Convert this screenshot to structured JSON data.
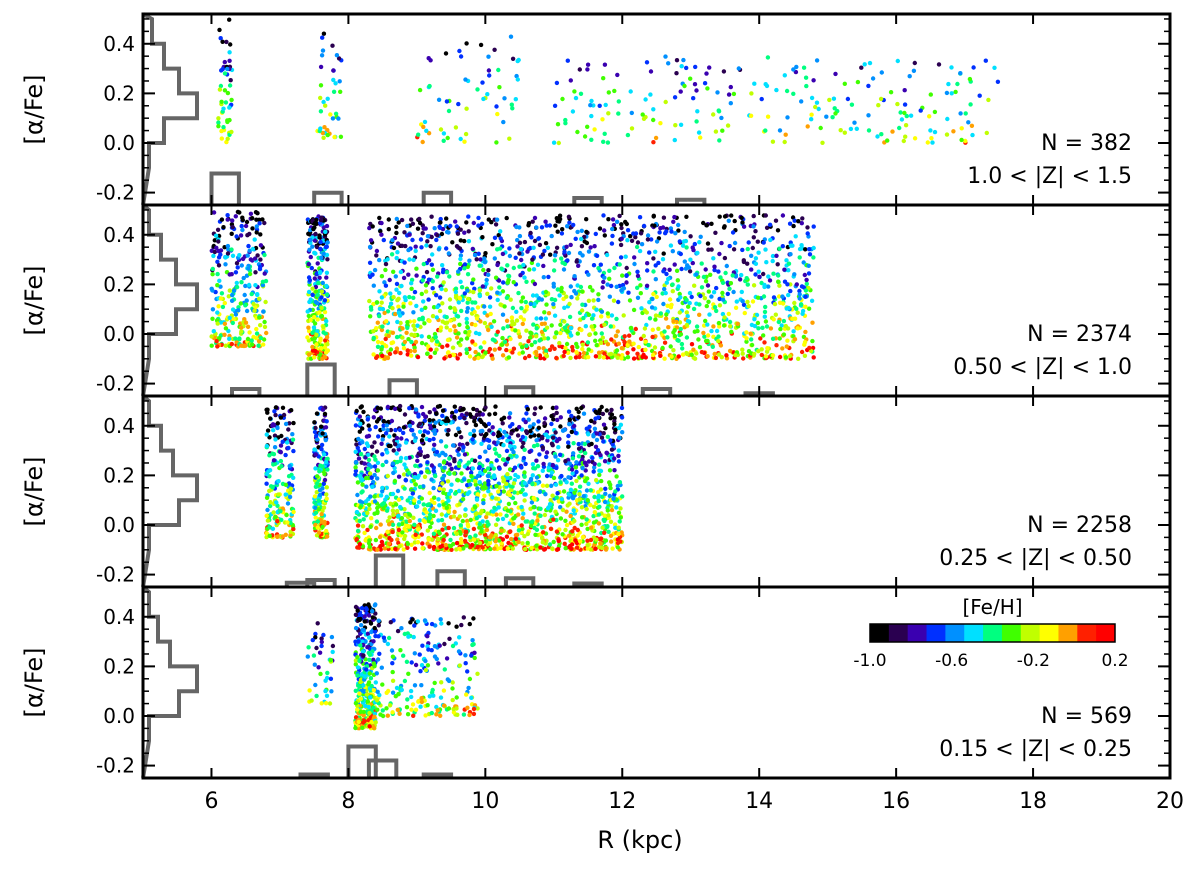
{
  "figure": {
    "xlabel": "R (kpc)",
    "x_ticks": [
      "6",
      "8",
      "10",
      "12",
      "14",
      "16",
      "18",
      "20"
    ],
    "x_tick_values": [
      6,
      8,
      10,
      12,
      14,
      16,
      18,
      20
    ],
    "ylabel": "[α/Fe]",
    "y_ticks": [
      "-0.2",
      "0.0",
      "0.2",
      "0.4"
    ],
    "y_tick_values": [
      -0.2,
      0.0,
      0.2,
      0.4
    ],
    "colorbar": {
      "title": "[Fe/H]",
      "tick_labels": [
        "-1.0",
        "-0.6",
        "-0.2",
        "0.2"
      ],
      "tick_values": [
        -1.0,
        -0.6,
        -0.2,
        0.2
      ],
      "range": [
        -1.0,
        0.2
      ],
      "colors": [
        "#000000",
        "#2a0050",
        "#3a00b0",
        "#0030ff",
        "#0090ff",
        "#00e0ff",
        "#00ff80",
        "#40ff00",
        "#c0ff00",
        "#ffff00",
        "#ffa000",
        "#ff2000",
        "#ff0000"
      ]
    },
    "histogram_color": "#666666"
  },
  "chart_data": [
    {
      "type": "scatter",
      "panel": 1,
      "n_label": "N = 382",
      "z_label": "1.0 < |Z| < 1.5",
      "xlim": [
        5,
        20
      ],
      "ylim": [
        -0.25,
        0.52
      ],
      "clusters": [
        {
          "x": [
            6.1,
            6.3
          ],
          "y": [
            -0.02,
            0.5
          ],
          "n": 50
        },
        {
          "x": [
            7.5,
            7.9
          ],
          "y": [
            0.02,
            0.45
          ],
          "n": 40
        },
        {
          "x": [
            9.0,
            10.5
          ],
          "y": [
            0.0,
            0.45
          ],
          "n": 60
        },
        {
          "x": [
            11.0,
            17.5
          ],
          "y": [
            0.0,
            0.35
          ],
          "n": 230
        }
      ],
      "histogram_R": {
        "bin_centers": [
          6.2,
          7.7,
          9.3,
          11.5,
          13.0
        ],
        "relative_heights": [
          0.9,
          0.35,
          0.35,
          0.2,
          0.15
        ]
      },
      "histogram_alpha": {
        "bin_centers": [
          -0.05,
          0.05,
          0.15,
          0.25,
          0.35,
          0.45
        ],
        "relative_heights": [
          0.1,
          0.35,
          0.9,
          0.6,
          0.35,
          0.15
        ]
      }
    },
    {
      "type": "scatter",
      "panel": 2,
      "n_label": "N = 2374",
      "z_label": "0.50 < |Z| < 1.0",
      "xlim": [
        5,
        20
      ],
      "ylim": [
        -0.25,
        0.52
      ],
      "clusters": [
        {
          "x": [
            6.0,
            6.8
          ],
          "y": [
            -0.05,
            0.5
          ],
          "n": 300
        },
        {
          "x": [
            7.4,
            7.7
          ],
          "y": [
            -0.1,
            0.48
          ],
          "n": 280
        },
        {
          "x": [
            8.3,
            14.8
          ],
          "y": [
            -0.1,
            0.48
          ],
          "n": 1794
        }
      ],
      "histogram_R": {
        "bin_centers": [
          6.5,
          7.6,
          8.8,
          10.5,
          12.5,
          14.0
        ],
        "relative_heights": [
          0.2,
          0.9,
          0.45,
          0.25,
          0.2,
          0.08
        ]
      },
      "histogram_alpha": {
        "bin_centers": [
          -0.05,
          0.05,
          0.15,
          0.25,
          0.35,
          0.45
        ],
        "relative_heights": [
          0.1,
          0.55,
          0.9,
          0.55,
          0.3,
          0.1
        ]
      }
    },
    {
      "type": "scatter",
      "panel": 3,
      "n_label": "N = 2258",
      "z_label": "0.25 < |Z| < 0.50",
      "xlim": [
        5,
        20
      ],
      "ylim": [
        -0.25,
        0.52
      ],
      "clusters": [
        {
          "x": [
            6.8,
            7.2
          ],
          "y": [
            -0.05,
            0.48
          ],
          "n": 200
        },
        {
          "x": [
            7.5,
            7.7
          ],
          "y": [
            -0.05,
            0.48
          ],
          "n": 180
        },
        {
          "x": [
            8.1,
            12.0
          ],
          "y": [
            -0.1,
            0.48
          ],
          "n": 1878
        }
      ],
      "histogram_R": {
        "bin_centers": [
          7.3,
          7.6,
          8.6,
          9.5,
          10.5,
          11.5
        ],
        "relative_heights": [
          0.12,
          0.2,
          0.9,
          0.45,
          0.25,
          0.1
        ]
      },
      "histogram_alpha": {
        "bin_centers": [
          -0.05,
          0.05,
          0.15,
          0.25,
          0.35,
          0.45
        ],
        "relative_heights": [
          0.1,
          0.6,
          0.9,
          0.5,
          0.3,
          0.1
        ]
      }
    },
    {
      "type": "scatter",
      "panel": 4,
      "n_label": "N = 569",
      "z_label": "0.15 < |Z| < 0.25",
      "xlim": [
        5,
        20
      ],
      "ylim": [
        -0.25,
        0.52
      ],
      "clusters": [
        {
          "x": [
            7.4,
            7.8
          ],
          "y": [
            0.05,
            0.42
          ],
          "n": 40
        },
        {
          "x": [
            8.1,
            8.4
          ],
          "y": [
            -0.05,
            0.45
          ],
          "n": 320
        },
        {
          "x": [
            8.4,
            9.9
          ],
          "y": [
            0.0,
            0.4
          ],
          "n": 209
        }
      ],
      "histogram_R": {
        "bin_centers": [
          7.5,
          8.2,
          8.5,
          9.3
        ],
        "relative_heights": [
          0.1,
          0.9,
          0.5,
          0.1
        ]
      },
      "histogram_alpha": {
        "bin_centers": [
          -0.05,
          0.05,
          0.15,
          0.25,
          0.35,
          0.45
        ],
        "relative_heights": [
          0.1,
          0.6,
          0.9,
          0.45,
          0.25,
          0.1
        ]
      }
    }
  ]
}
